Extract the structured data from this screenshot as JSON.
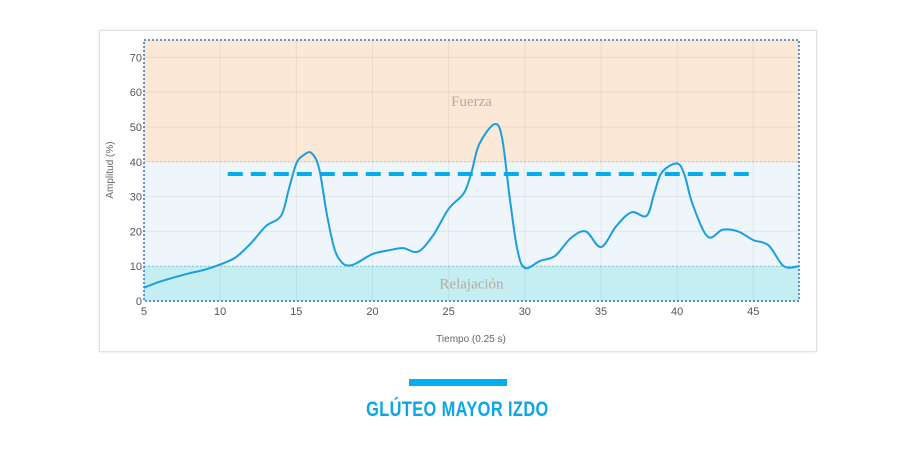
{
  "chart_data": {
    "type": "line",
    "xlabel": "Tiempo (0.25 s)",
    "ylabel": "Amplitud (%)",
    "xlim": [
      5,
      48
    ],
    "ylim": [
      0,
      75
    ],
    "xticks": [
      5,
      10,
      15,
      20,
      25,
      30,
      35,
      40,
      45
    ],
    "yticks": [
      0,
      10,
      20,
      30,
      40,
      50,
      60,
      70
    ],
    "grid": true,
    "bands": [
      {
        "label": "Relajación",
        "from": 0,
        "to": 10,
        "color": "#c5eef2"
      },
      {
        "label": "",
        "from": 10,
        "to": 40,
        "color": "#eef6fc"
      },
      {
        "label": "Fuerza",
        "from": 40,
        "to": 75,
        "color": "#fbe8d7"
      }
    ],
    "threshold": {
      "y": 36.5,
      "x_from": 10.5,
      "x_to": 45,
      "color": "#00aeef"
    },
    "series": [
      {
        "color": "#1a9ee0",
        "x": [
          5,
          6,
          7,
          8,
          9,
          10,
          11,
          12,
          13,
          14,
          14.5,
          15,
          15.5,
          16,
          16.5,
          17,
          17.5,
          18,
          18.5,
          19,
          20,
          21,
          22,
          23,
          24,
          25,
          26,
          26.5,
          27,
          28,
          28.5,
          29,
          29.5,
          30,
          31,
          32,
          33,
          34,
          35,
          36,
          37,
          38,
          38.5,
          39,
          40,
          40.5,
          41,
          42,
          43,
          44,
          45,
          46,
          47,
          48
        ],
        "y": [
          3.8,
          5.5,
          6.8,
          8,
          9,
          10.5,
          12.5,
          16.5,
          21.5,
          24.5,
          32,
          39.5,
          42,
          42.5,
          38,
          25,
          15,
          11,
          10.2,
          11,
          13.5,
          14.5,
          15.2,
          14.2,
          19,
          26.5,
          31,
          37,
          45,
          50.8,
          47,
          30,
          15,
          9.5,
          11.5,
          13,
          18,
          20,
          15.5,
          21.5,
          25.5,
          24.5,
          31,
          37,
          39.5,
          36,
          28,
          18.5,
          20.5,
          20,
          17.5,
          16,
          10,
          10
        ]
      }
    ]
  },
  "caption": "GLÚTEO MAYOR IZDO",
  "colors": {
    "accent": "#00aeef",
    "caption": "#0aa6e8"
  }
}
